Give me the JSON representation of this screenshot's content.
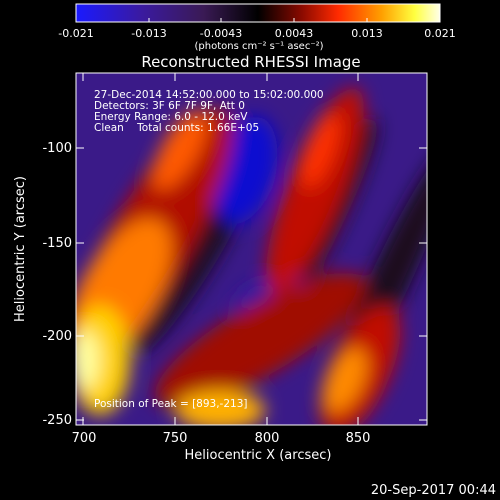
{
  "colorbar": {
    "tick_labels": [
      "-0.021",
      "-0.013",
      "-0.0043",
      "0.0043",
      "0.013",
      "0.021"
    ],
    "units_label": "(photons cm⁻² s⁻¹ asec⁻²)",
    "colors": [
      "#1414ff",
      "#3a1a8c",
      "#2a1030",
      "#000000",
      "#7a0a00",
      "#ff2a00",
      "#ffb000",
      "#ffff40",
      "#ffffe0"
    ]
  },
  "plot": {
    "title": "Reconstructed RHESSI Image",
    "info_lines": [
      "27-Dec-2014 14:52:00.000 to 15:02:00.000",
      "Detectors: 3F 6F 7F 9F, Att 0",
      "Energy Range: 6.0 - 12.0 keV",
      "Clean    Total counts: 1.66E+05"
    ],
    "peak_label": "Position of Peak = [893,-213]",
    "xlabel": "Heliocentric X (arcsec)",
    "ylabel": "Heliocentric Y (arcsec)",
    "x_ticks": [
      "700",
      "750",
      "800",
      "850"
    ],
    "y_ticks": [
      "-100",
      "-150",
      "-200",
      "-250"
    ]
  },
  "footer": {
    "date": "20-Sep-2017 00:44"
  }
}
